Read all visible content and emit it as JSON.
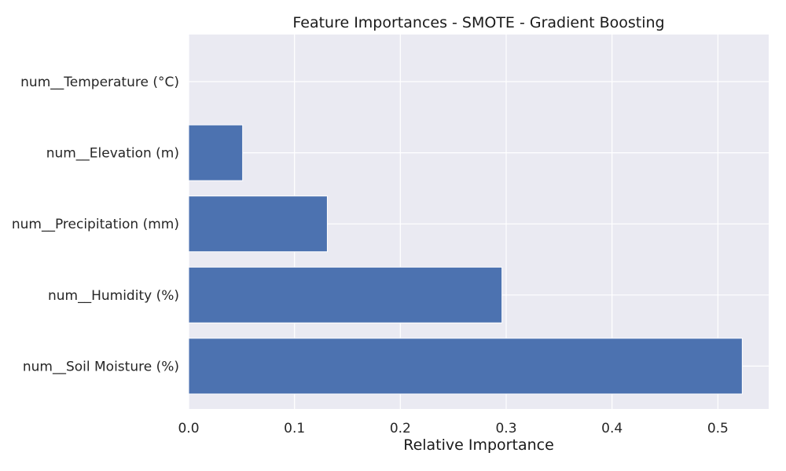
{
  "chart_data": {
    "type": "bar",
    "orientation": "horizontal",
    "title": "Feature Importances - SMOTE - Gradient Boosting",
    "xlabel": "Relative Importance",
    "ylabel": "",
    "categories": [
      "num__Temperature (°C)",
      "num__Elevation (m)",
      "num__Precipitation (mm)",
      "num__Humidity (%)",
      "num__Soil Moisture (%)"
    ],
    "values": [
      0.0,
      0.051,
      0.131,
      0.296,
      0.523
    ],
    "xlim": [
      0,
      0.548
    ],
    "xticks": [
      0.0,
      0.1,
      0.2,
      0.3,
      0.4,
      0.5
    ],
    "xtick_labels": [
      "0.0",
      "0.1",
      "0.2",
      "0.3",
      "0.4",
      "0.5"
    ],
    "grid": true,
    "legend": "none",
    "colors": {
      "bar": "#4c72b0",
      "plot_background": "#eaeaf2",
      "grid": "#ffffff"
    }
  }
}
